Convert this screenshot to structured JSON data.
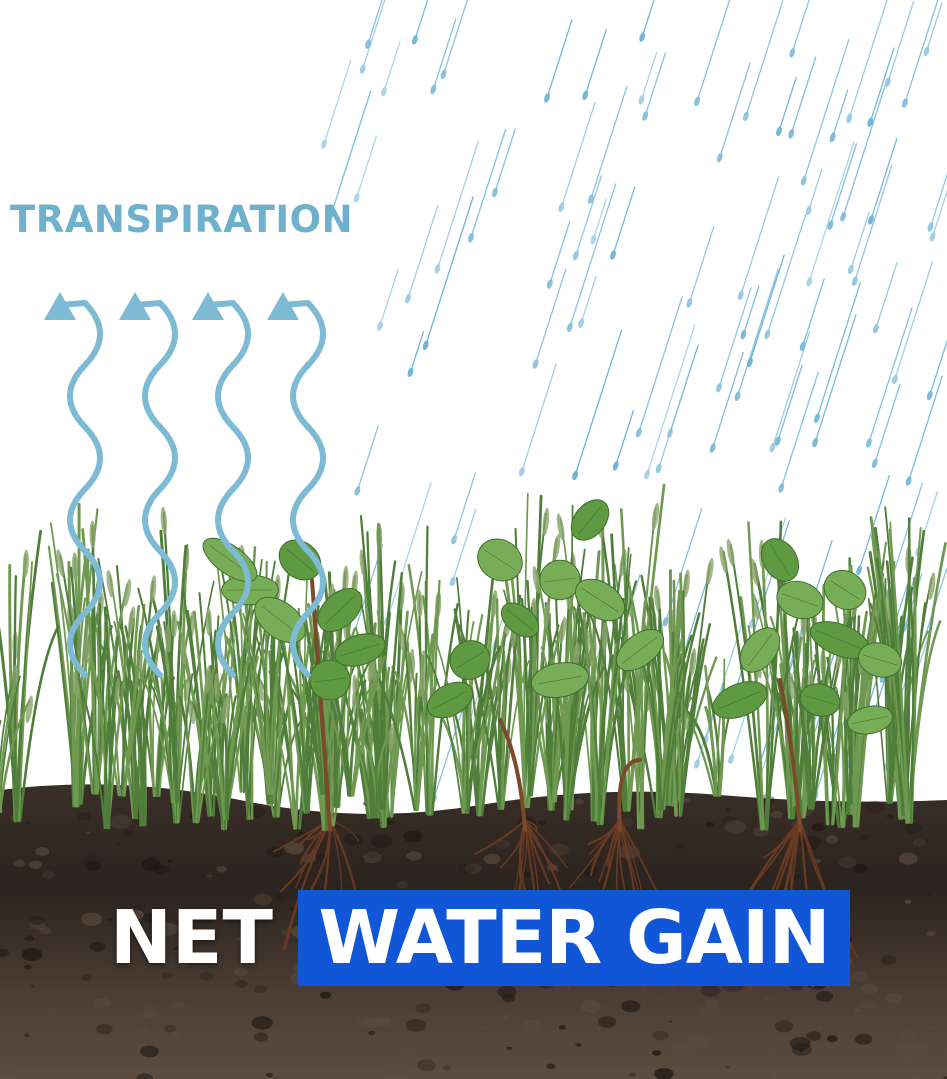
{
  "transpiration_label": "TRANSPIRATION",
  "headline": {
    "word_1": "NET",
    "highlight": "WATER GAIN"
  },
  "colors": {
    "transpiration_text": "#6fb1cd",
    "transpiration_arrows": "#7dbad3",
    "rain": "#6fb4d6",
    "highlight_box": "#1156d6",
    "soil_dark": "#2e2621",
    "soil_mid": "#5a4a3e",
    "grass": "#4f7d3a",
    "leaf": "#5f9a42",
    "stem": "#7a4a2a",
    "root": "#6b3b22"
  },
  "icons": {
    "arrows": "wavy-up-arrow-icon",
    "rain": "raindrop-icon"
  }
}
